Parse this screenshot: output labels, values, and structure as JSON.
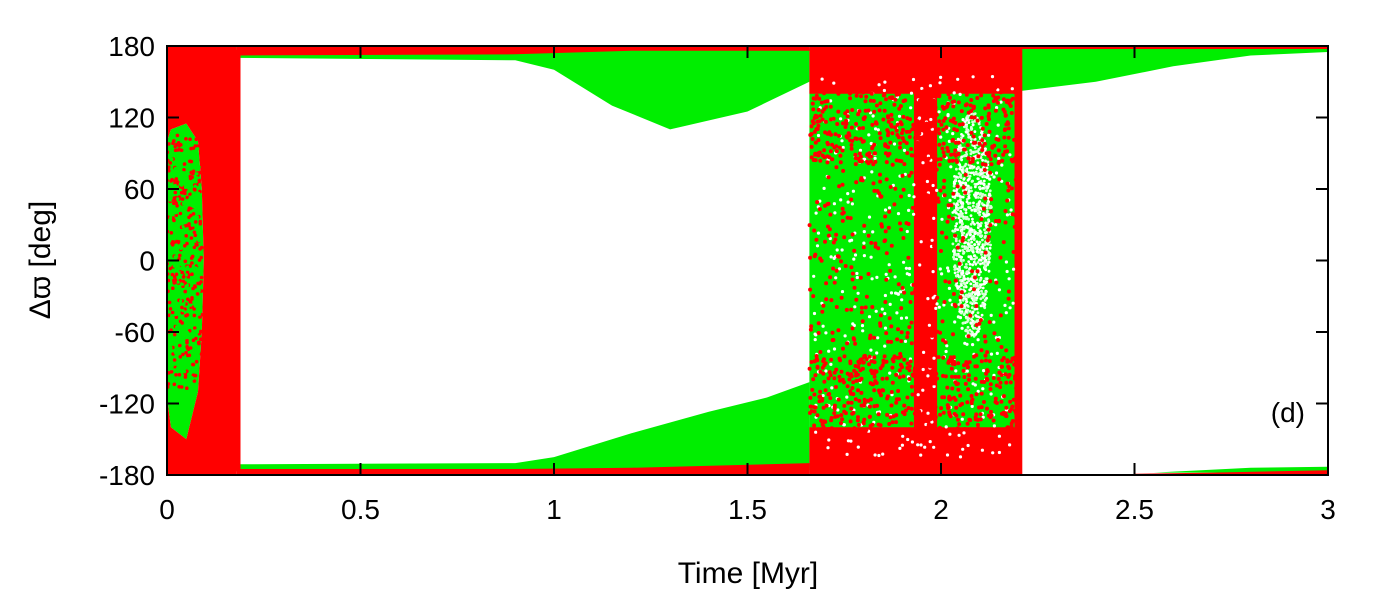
{
  "chart_data": {
    "type": "scatter",
    "title": "",
    "xlabel": "Time [Myr]",
    "ylabel": "Δϖ [deg]",
    "xlim": [
      0,
      3
    ],
    "ylim": [
      -180,
      180
    ],
    "xticks": [
      0,
      0.5,
      1,
      1.5,
      2,
      2.5,
      3
    ],
    "xtick_labels": [
      "0",
      "0.5",
      "1",
      "1.5",
      "2",
      "2.5",
      "3"
    ],
    "yticks": [
      180,
      120,
      60,
      0,
      -60,
      -120,
      -180
    ],
    "ytick_labels": [
      "180",
      "120",
      "60",
      "0",
      "-60",
      "-120",
      "-180"
    ],
    "panel_label": "(d)",
    "grid": false,
    "series": [
      {
        "color": "#00ee00",
        "regions": [
          {
            "x": [
              0.0,
              0.09
            ],
            "y": [
              -115,
              110
            ]
          },
          {
            "x": [
              0.18,
              0.9
            ],
            "y_upper": [
              172,
              172
            ],
            "y_lower": [
              -172,
              -172
            ]
          },
          {
            "x": [
              0.9,
              1.66
            ],
            "y_upper": [
              172,
              172
            ],
            "y_lower": [
              -172,
              -172
            ]
          },
          {
            "x": [
              1.66,
              2.2
            ],
            "y": [
              -178,
              150
            ]
          },
          {
            "x": [
              2.2,
              3.0
            ],
            "y_upper": [
              178,
              178
            ]
          }
        ]
      },
      {
        "color": "#ff0000",
        "regions": [
          {
            "x": [
              0.0,
              0.18
            ],
            "y": [
              -180,
              180
            ]
          },
          {
            "x": [
              0.18,
              1.66
            ],
            "y_near_edges": true
          },
          {
            "x": [
              1.66,
              2.2
            ],
            "y": [
              -180,
              180
            ]
          },
          {
            "x": [
              2.2,
              3.0
            ],
            "y_near_edges": true
          }
        ]
      }
    ]
  },
  "colors": {
    "green": "#00ee00",
    "red": "#ff0000",
    "axis": "#000000"
  }
}
